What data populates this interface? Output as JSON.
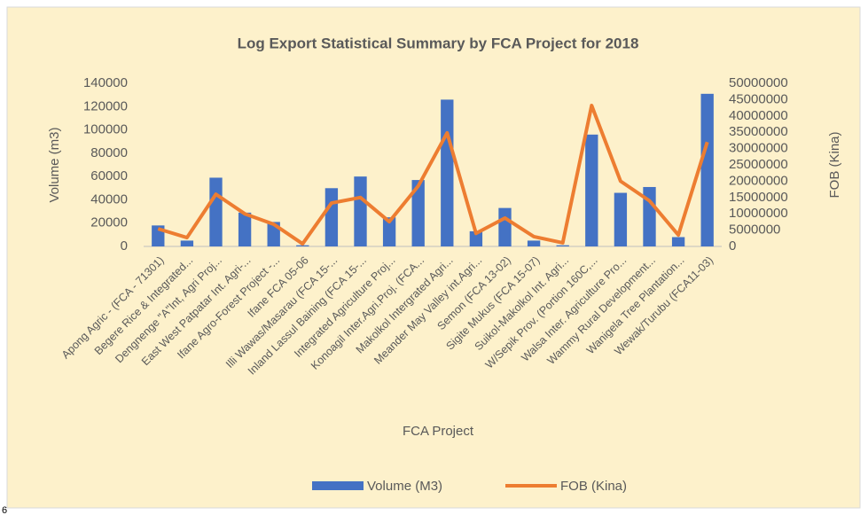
{
  "chart_data": {
    "type": "bar_line",
    "title": "Log Export Statistical Summary by FCA Project for 2018",
    "x_label": "FCA Project",
    "y_label": "Volume (m3)",
    "y2_label": "FOB (Kina)",
    "categories": [
      "Apong Agric - (FCA - 71301)",
      "Begere Rice & Integrated...",
      "Dengnenge \"A\"Int, Agri Proj...",
      "East West Patpatar Int. Agri-...",
      "Ifane Agro-Forest Project -...",
      "Ifane FCA 05-06",
      "Illi Wawas/Masarau (FCA 15-...",
      "Inland Lassul Baining (FCA 15-...",
      "Integrated Agriculture Proj...",
      "Konoagil Inter.Agri.Proj. (FCA...",
      "Makolkol Intergrated Agri...",
      "Meander May Valley int.Agri...",
      "Semon (FCA 13-02)",
      "Sigite Mukus (FCA 15-07)",
      "Suikol-Makolkol Int. Agri...",
      "W/Sepik Prov. (Portion 160C,...",
      "Walsa Inter. Agriculture Pro...",
      "Wammy Rural Development...",
      "Wanigela Tree Plantation...",
      "Wewak/Turubu (FCA11-03)"
    ],
    "series": [
      {
        "name": "Volume (M3)",
        "type": "bar",
        "color": "#4472c4",
        "values": [
          18000,
          5000,
          59000,
          29000,
          21000,
          1000,
          50000,
          60000,
          25000,
          57000,
          126000,
          13000,
          33000,
          5000,
          1000,
          96000,
          46000,
          51000,
          8000,
          131000
        ]
      },
      {
        "name": "FOB (Kina)",
        "type": "line",
        "axis": "y2",
        "color": "#ed7d31",
        "values": [
          5400000,
          2700000,
          16000000,
          10000000,
          6800000,
          800000,
          13300000,
          15000000,
          7600000,
          18500000,
          34800000,
          4000000,
          8700000,
          3000000,
          1100000,
          43200000,
          20000000,
          14000000,
          3500000,
          32000000
        ]
      }
    ],
    "ylim": [
      0,
      140000
    ],
    "yticks": [
      0,
      20000,
      40000,
      60000,
      80000,
      100000,
      120000,
      140000
    ],
    "y2lim": [
      0,
      50000000
    ],
    "y2ticks": [
      0,
      5000000,
      10000000,
      15000000,
      20000000,
      25000000,
      30000000,
      35000000,
      40000000,
      45000000,
      50000000
    ],
    "grid": false,
    "legend": "bottom"
  },
  "footer_text": "6"
}
